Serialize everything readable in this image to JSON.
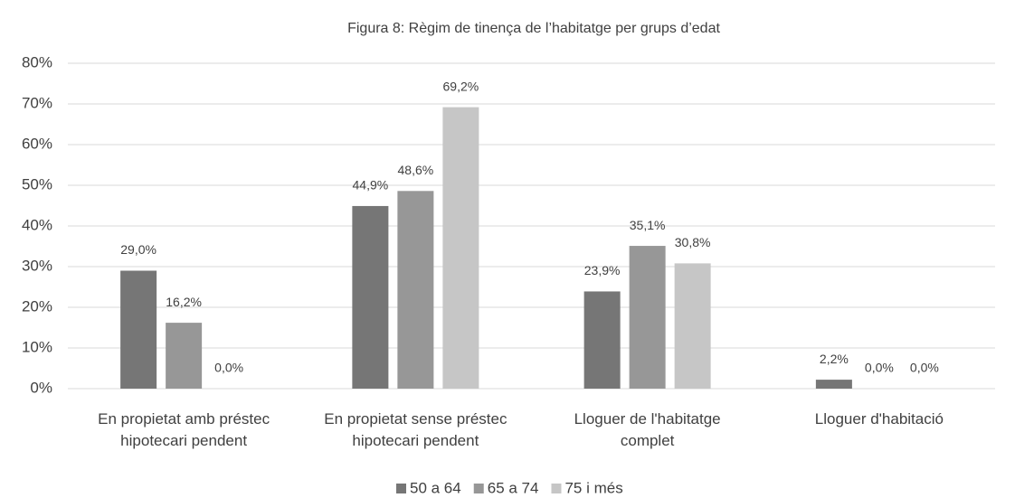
{
  "chart_data": {
    "type": "bar",
    "title": "Figura 8: Règim de tinença de l’habitatge per grups d’edat",
    "categories": [
      "En propietat amb préstec\nhipotecari pendent",
      "En propietat  sense préstec\nhipotecari pendent",
      "Lloguer de l'habitatge\ncomplet",
      "Lloguer d'habitació"
    ],
    "series": [
      {
        "name": "50 a 64",
        "color": "#767676",
        "values": [
          29.0,
          44.9,
          23.9,
          2.2
        ],
        "value_labels": [
          "29,0%",
          "44,9%",
          "23,9%",
          "2,2%"
        ]
      },
      {
        "name": "65 a 74",
        "color": "#979797",
        "values": [
          16.2,
          48.6,
          35.1,
          0.0
        ],
        "value_labels": [
          "16,2%",
          "48,6%",
          "35,1%",
          "0,0%"
        ]
      },
      {
        "name": "75 i més",
        "color": "#c6c6c6",
        "values": [
          0.0,
          69.2,
          30.8,
          0.0
        ],
        "value_labels": [
          "0,0%",
          "69,2%",
          "30,8%",
          "0,0%"
        ]
      }
    ],
    "ylim": [
      0,
      80
    ],
    "yticks": [
      {
        "value": 0,
        "label": "0%"
      },
      {
        "value": 10,
        "label": "10%"
      },
      {
        "value": 20,
        "label": "20%"
      },
      {
        "value": 30,
        "label": "30%"
      },
      {
        "value": 40,
        "label": "40%"
      },
      {
        "value": 50,
        "label": "50%"
      },
      {
        "value": 60,
        "label": "60%"
      },
      {
        "value": 70,
        "label": "70%"
      },
      {
        "value": 80,
        "label": "80%"
      }
    ],
    "grid": true,
    "legend": "bottom"
  }
}
